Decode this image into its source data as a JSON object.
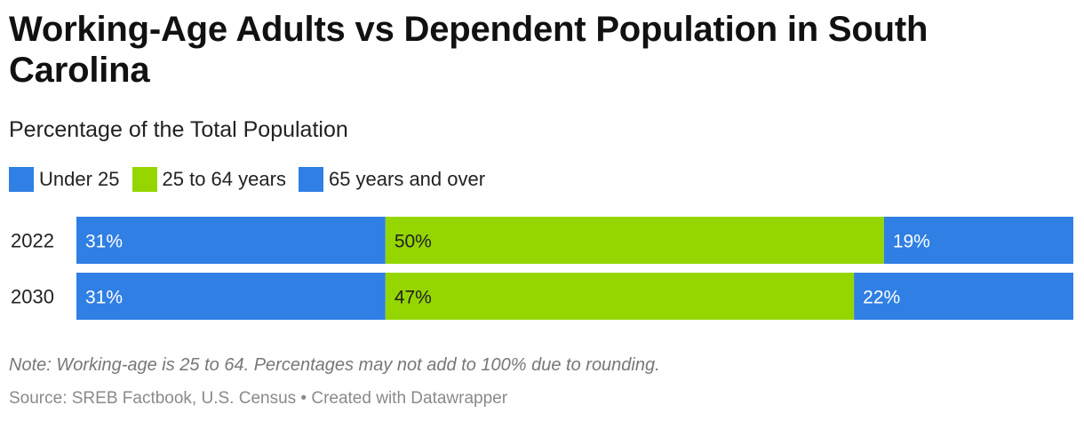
{
  "title": "Working-Age Adults vs Dependent Population in South Carolina",
  "subtitle": "Percentage of the Total Population",
  "note": "Note: Working-age is 25 to 64. Percentages may not add to 100% due to rounding.",
  "source": "Source: SREB Factbook, U.S. Census • Created with Datawrapper",
  "chart_data": {
    "type": "bar",
    "orientation": "horizontal",
    "stacked": true,
    "xlim": [
      0,
      100
    ],
    "value_suffix": "%",
    "categories": [
      "2022",
      "2030"
    ],
    "series": [
      {
        "name": "Under 25",
        "color": "#2f7fe4",
        "label_color": "#ffffff",
        "values": [
          31,
          31
        ]
      },
      {
        "name": "25 to 64 years",
        "color": "#95d600",
        "label_color": "#222222",
        "values": [
          50,
          47
        ]
      },
      {
        "name": "65 years and over",
        "color": "#2f7fe4",
        "label_color": "#ffffff",
        "values": [
          19,
          22
        ]
      }
    ],
    "legend_position": "top-left",
    "grid": false
  }
}
